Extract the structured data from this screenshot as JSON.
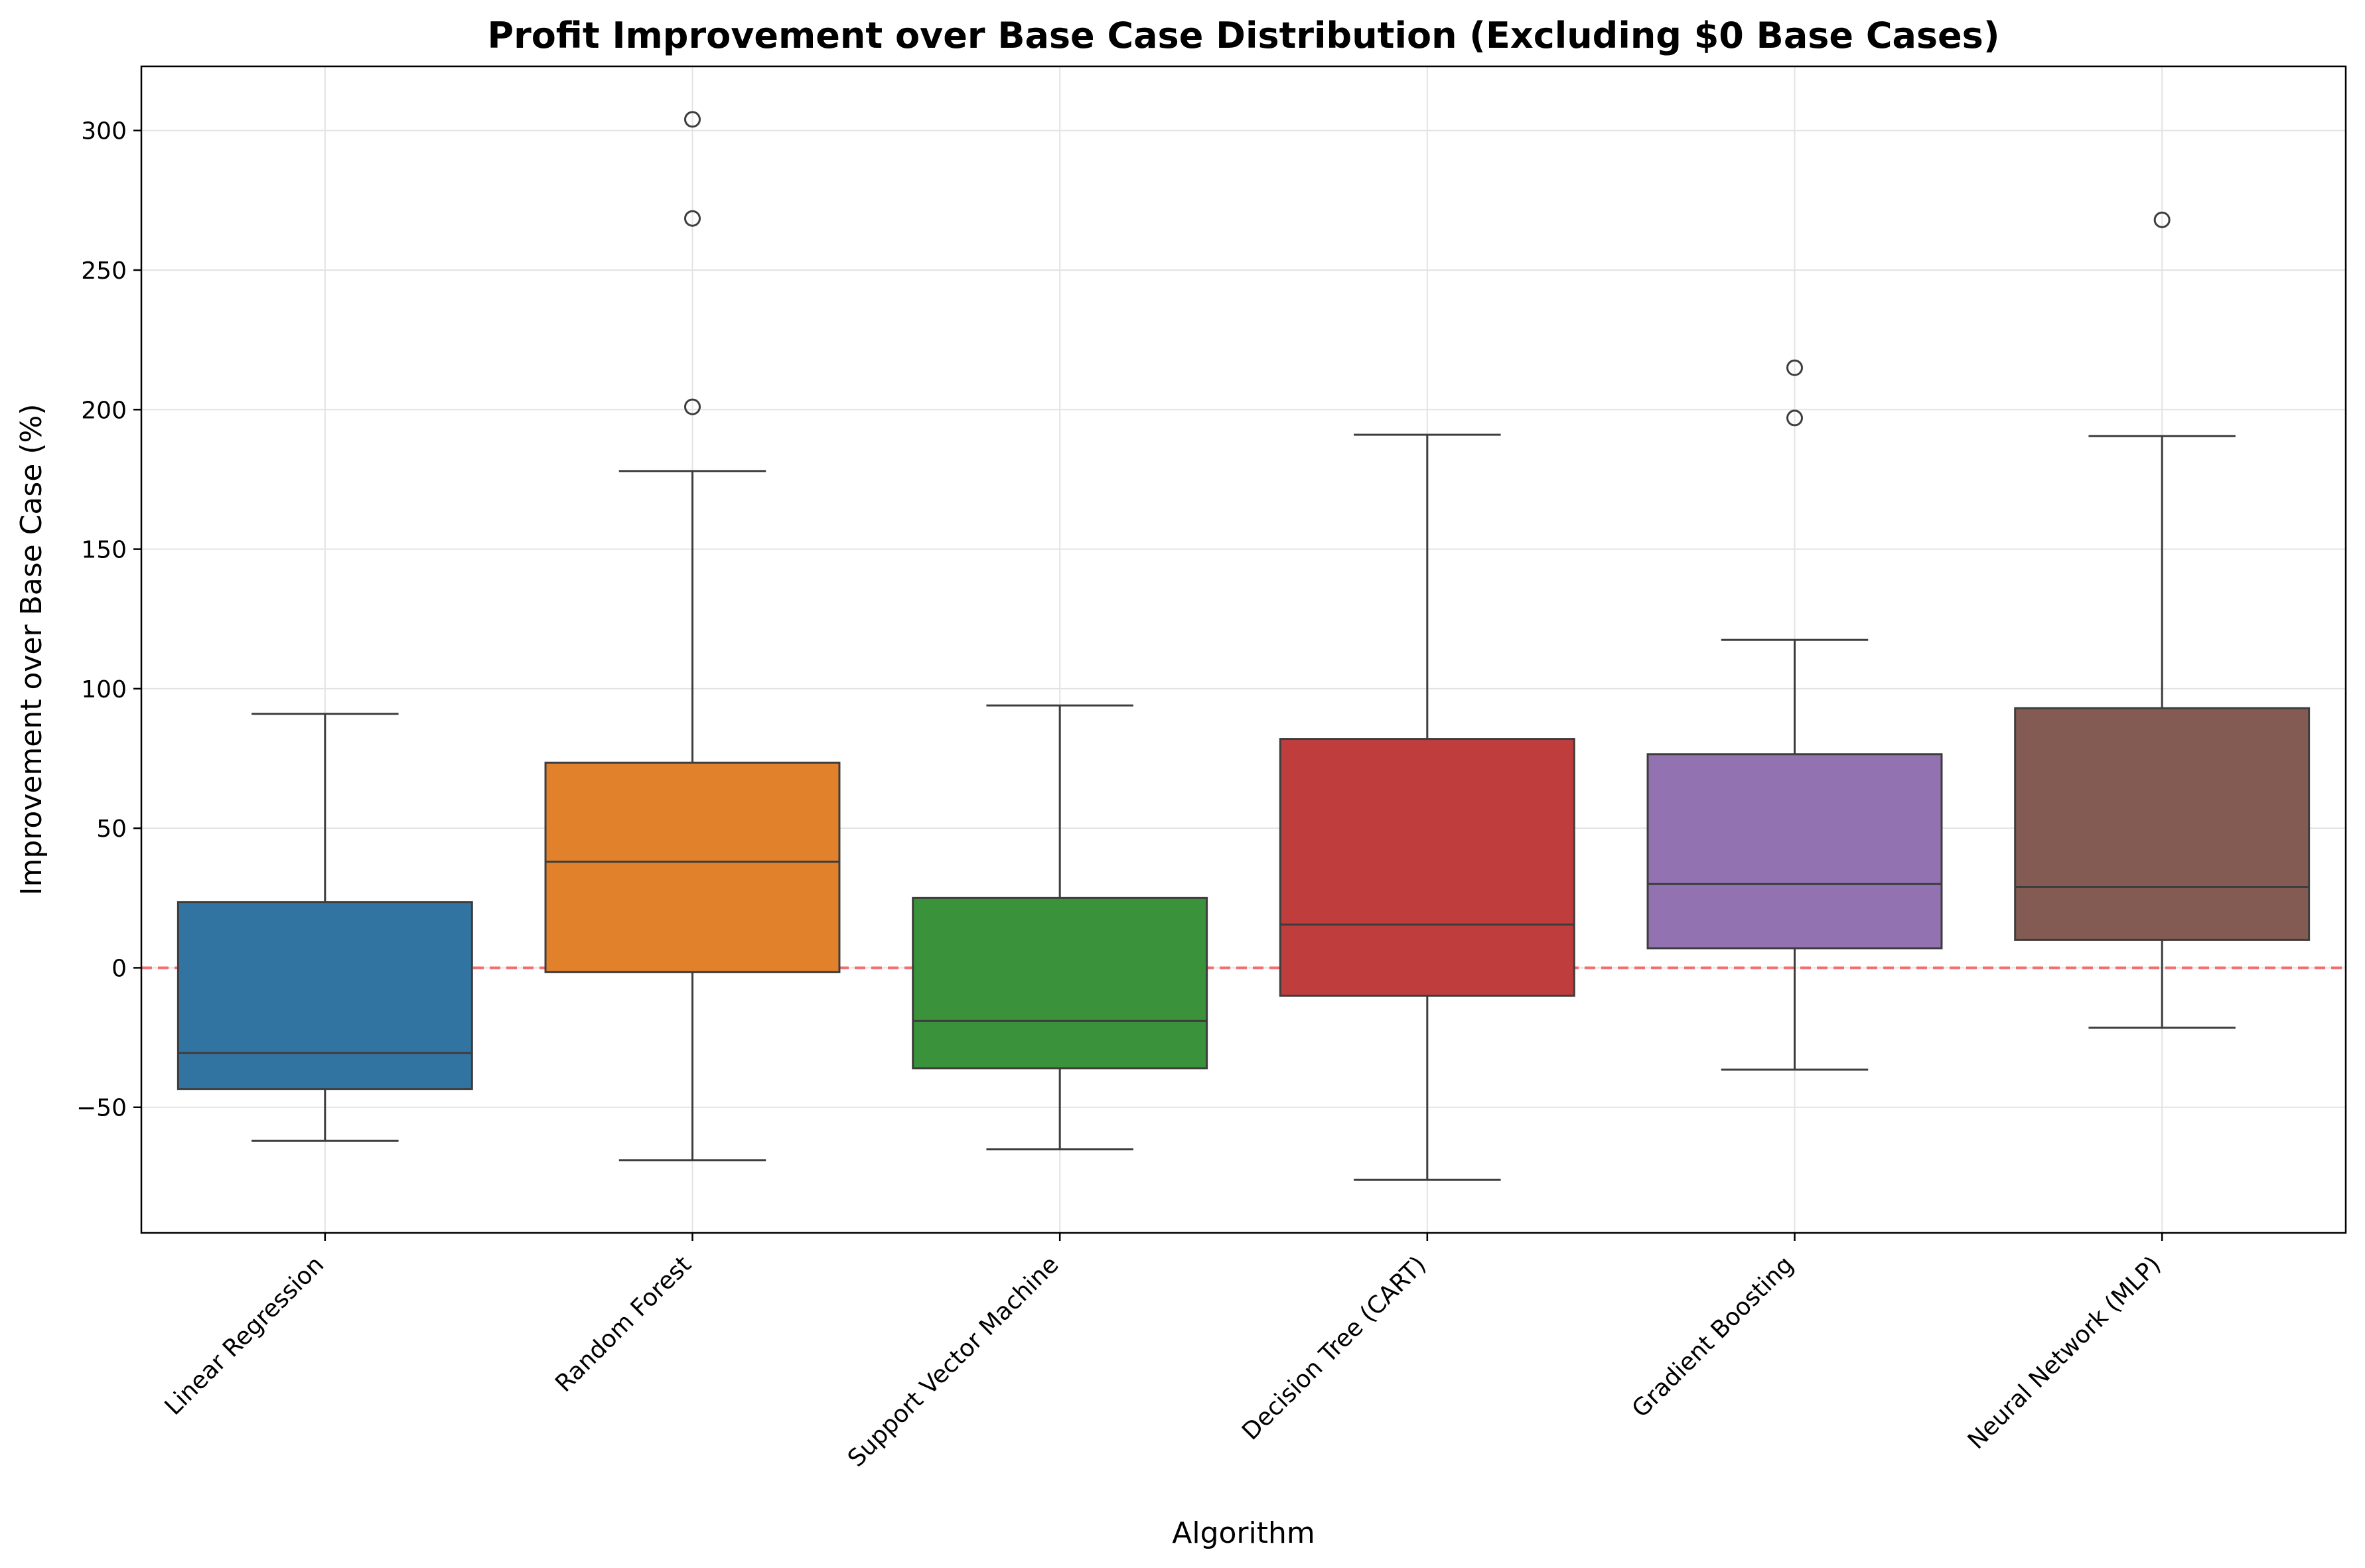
{
  "chart_data": {
    "type": "box",
    "title": "Profit Improvement over Base Case Distribution (Excluding $0 Base Cases)",
    "xlabel": "Algorithm",
    "ylabel": "Improvement over Base Case (%)",
    "ylim": [
      -95,
      323
    ],
    "yticks": [
      -50,
      0,
      50,
      100,
      150,
      200,
      250,
      300
    ],
    "ytick_labels": [
      "−50",
      "0",
      "50",
      "100",
      "150",
      "200",
      "250",
      "300"
    ],
    "grid": true,
    "reference_line": {
      "y": 0,
      "color": "#f05a5a",
      "style": "dashed"
    },
    "categories": [
      "Linear Regression",
      "Random Forest",
      "Support Vector Machine",
      "Decision Tree (CART)",
      "Gradient Boosting",
      "Neural Network (MLP)"
    ],
    "boxes": [
      {
        "category": "Linear Regression",
        "color": "#3274a1",
        "whisker_low": -62,
        "q1": -43.5,
        "median": -30.5,
        "q3": 23.5,
        "whisker_high": 91,
        "outliers": []
      },
      {
        "category": "Random Forest",
        "color": "#e1812c",
        "whisker_low": -69,
        "q1": -1.5,
        "median": 38,
        "q3": 73.5,
        "whisker_high": 178,
        "outliers": [
          201,
          268.5,
          304
        ]
      },
      {
        "category": "Support Vector Machine",
        "color": "#3a923a",
        "whisker_low": -65,
        "q1": -36,
        "median": -19,
        "q3": 25,
        "whisker_high": 94,
        "outliers": []
      },
      {
        "category": "Decision Tree (CART)",
        "color": "#c03d3e",
        "whisker_low": -76,
        "q1": -10,
        "median": 15.5,
        "q3": 82,
        "whisker_high": 191,
        "outliers": []
      },
      {
        "category": "Gradient Boosting",
        "color": "#9372b2",
        "whisker_low": -36.5,
        "q1": 7,
        "median": 30,
        "q3": 76.5,
        "whisker_high": 117.5,
        "outliers": [
          197,
          215
        ]
      },
      {
        "category": "Neural Network (MLP)",
        "color": "#845b53",
        "whisker_low": -21.5,
        "q1": 10,
        "median": 29,
        "q3": 93,
        "whisker_high": 190.5,
        "outliers": [
          268
        ]
      }
    ]
  }
}
